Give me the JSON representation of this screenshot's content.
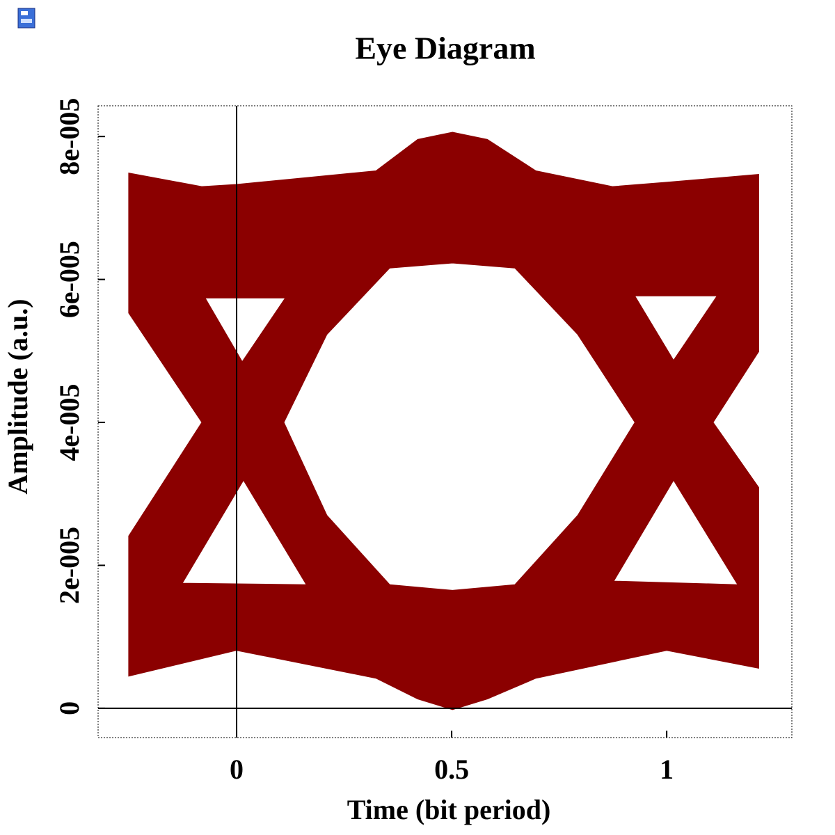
{
  "chart_data": {
    "type": "eye",
    "title": "Eye Diagram",
    "x_label": "Time (bit period)",
    "y_label": "Amplitude (a.u.)",
    "xlim": [
      -0.322,
      1.291
    ],
    "ylim": [
      -4.1e-06,
      8.43e-05
    ],
    "xticks": [
      0,
      0.5,
      1
    ],
    "yticks": [
      0,
      {
        "value": 2e-05,
        "label": "2e-005"
      },
      {
        "value": 4e-05,
        "label": "4e-005"
      },
      {
        "value": 6e-05,
        "label": "6e-005"
      },
      {
        "value": 8e-05,
        "label": "8e-005"
      }
    ],
    "series": [
      {
        "color": "#8b0000",
        "x": [
          -0.251,
          -0.081,
          0,
          0.324,
          0.421,
          0.502,
          0.583,
          0.696,
          0.874,
          1.0,
          1.214,
          1.214,
          1.108,
          1.214,
          1.214,
          1.0,
          0.696,
          0.583,
          0.502,
          0.421,
          0.324,
          0,
          -0.251,
          -0.251,
          -0.081,
          -0.251,
          null,
          -0.073,
          0.113,
          0.013,
          null,
          0.016,
          -0.126,
          0.162,
          null,
          0.926,
          1.117,
          1.016,
          null,
          1.016,
          0.877,
          1.165,
          null,
          0.11,
          0.21,
          0.356,
          0.502,
          0.647,
          0.793,
          0.926,
          0.793,
          0.647,
          0.502,
          0.356,
          0.21
        ],
        "values": [
          7.49e-05,
          7.3e-05,
          7.33e-05,
          7.52e-05,
          7.96e-05,
          8.06e-05,
          7.96e-05,
          7.52e-05,
          7.3e-05,
          7.36e-05,
          7.47e-05,
          4.99e-05,
          4e-05,
          3.09e-05,
          5.6e-06,
          8.1e-06,
          4.2e-06,
          1.3e-06,
          -2e-07,
          1.3e-06,
          4.2e-06,
          8.1e-06,
          4.5e-06,
          2.41e-05,
          4e-05,
          5.53e-05,
          null,
          5.74e-05,
          5.74e-05,
          4.85e-05,
          null,
          3.19e-05,
          1.75e-05,
          1.73e-05,
          null,
          5.77e-05,
          5.77e-05,
          4.87e-05,
          null,
          3.19e-05,
          1.78e-05,
          1.73e-05,
          null,
          4e-05,
          5.23e-05,
          6.16e-05,
          6.23e-05,
          6.16e-05,
          5.23e-05,
          4e-05,
          2.7e-05,
          1.73e-05,
          1.65e-05,
          1.73e-05,
          2.7e-05
        ]
      }
    ]
  }
}
